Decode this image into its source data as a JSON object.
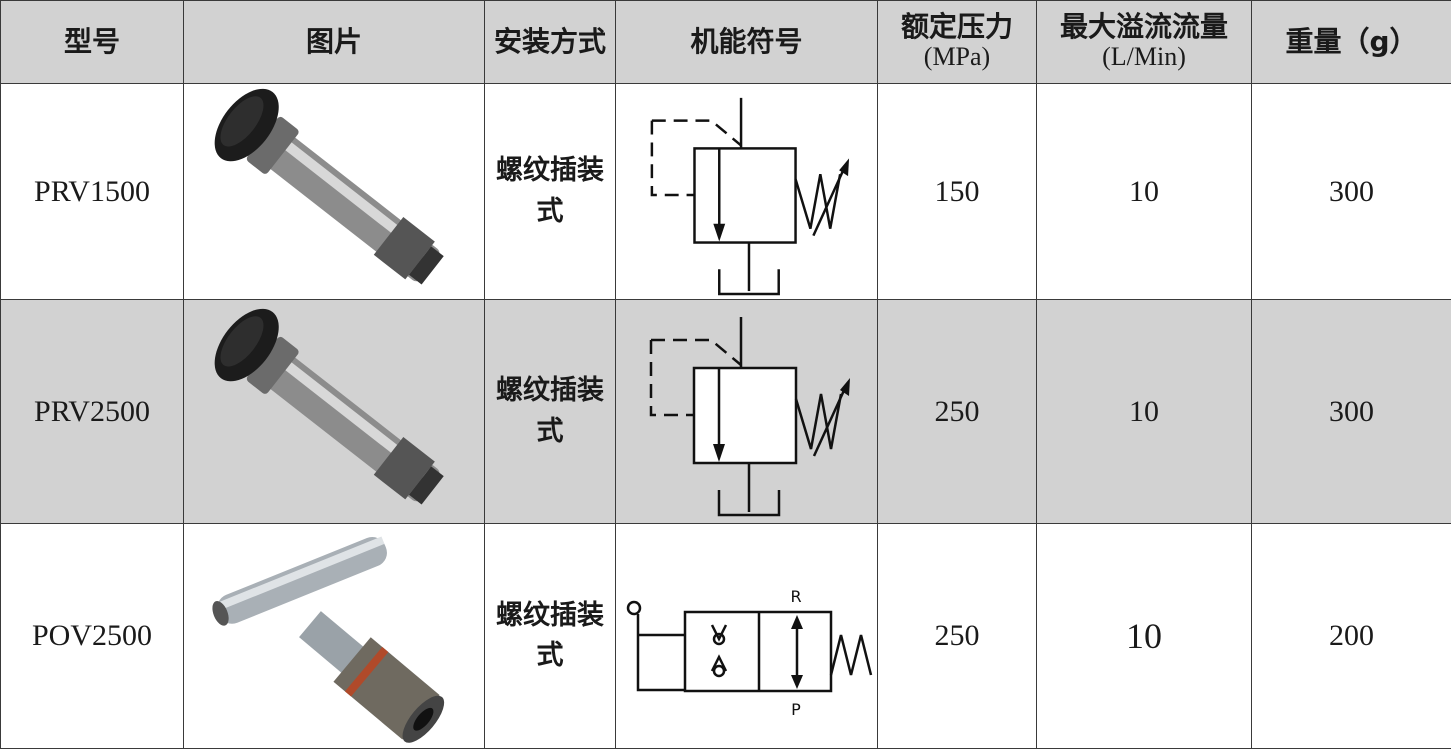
{
  "header": [
    [
      "型号"
    ],
    [
      "图片"
    ],
    [
      "安装方式"
    ],
    [
      "机能符号"
    ],
    [
      "额定压力",
      "(MPa)"
    ],
    [
      "最大溢流流量",
      "(L/Min)"
    ],
    [
      "重量（g）"
    ]
  ],
  "rows": [
    {
      "model": "PRV1500",
      "mounting": "螺纹插装式",
      "pressure": 150,
      "flow": 10,
      "weight": 300
    },
    {
      "model": "PRV2500",
      "mounting": "螺纹插装式",
      "pressure": 250,
      "flow": 10,
      "weight": 300
    },
    {
      "model": "POV2500",
      "mounting": "螺纹插装式",
      "pressure": 250,
      "flow": 10,
      "weight": 200,
      "symbol_labels": [
        "R",
        "P"
      ]
    }
  ]
}
